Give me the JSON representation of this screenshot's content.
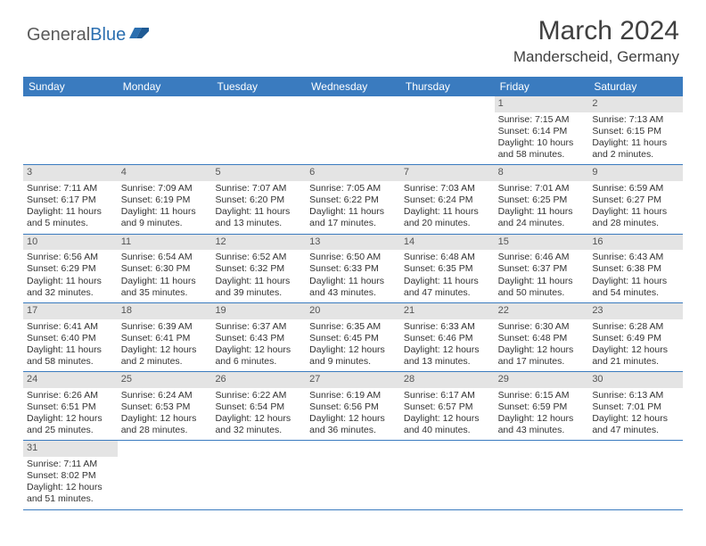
{
  "logo": {
    "part1": "General",
    "part2": "Blue"
  },
  "title": "March 2024",
  "location": "Manderscheid, Germany",
  "colors": {
    "header_bg": "#3a7bbf",
    "header_fg": "#ffffff",
    "daynum_bg": "#e4e4e4",
    "row_border": "#3a7bbf",
    "logo_gray": "#5a5a5a",
    "logo_blue": "#2b6fb0",
    "title_color": "#404040",
    "text_color": "#333333",
    "background": "#ffffff"
  },
  "fonts": {
    "title_size": 30,
    "location_size": 17,
    "dayhead_size": 12,
    "cell_size": 10.5
  },
  "day_headers": [
    "Sunday",
    "Monday",
    "Tuesday",
    "Wednesday",
    "Thursday",
    "Friday",
    "Saturday"
  ],
  "weeks": [
    [
      null,
      null,
      null,
      null,
      null,
      {
        "n": "1",
        "sunrise": "7:15 AM",
        "sunset": "6:14 PM",
        "daylight": "10 hours and 58 minutes."
      },
      {
        "n": "2",
        "sunrise": "7:13 AM",
        "sunset": "6:15 PM",
        "daylight": "11 hours and 2 minutes."
      }
    ],
    [
      {
        "n": "3",
        "sunrise": "7:11 AM",
        "sunset": "6:17 PM",
        "daylight": "11 hours and 5 minutes."
      },
      {
        "n": "4",
        "sunrise": "7:09 AM",
        "sunset": "6:19 PM",
        "daylight": "11 hours and 9 minutes."
      },
      {
        "n": "5",
        "sunrise": "7:07 AM",
        "sunset": "6:20 PM",
        "daylight": "11 hours and 13 minutes."
      },
      {
        "n": "6",
        "sunrise": "7:05 AM",
        "sunset": "6:22 PM",
        "daylight": "11 hours and 17 minutes."
      },
      {
        "n": "7",
        "sunrise": "7:03 AM",
        "sunset": "6:24 PM",
        "daylight": "11 hours and 20 minutes."
      },
      {
        "n": "8",
        "sunrise": "7:01 AM",
        "sunset": "6:25 PM",
        "daylight": "11 hours and 24 minutes."
      },
      {
        "n": "9",
        "sunrise": "6:59 AM",
        "sunset": "6:27 PM",
        "daylight": "11 hours and 28 minutes."
      }
    ],
    [
      {
        "n": "10",
        "sunrise": "6:56 AM",
        "sunset": "6:29 PM",
        "daylight": "11 hours and 32 minutes."
      },
      {
        "n": "11",
        "sunrise": "6:54 AM",
        "sunset": "6:30 PM",
        "daylight": "11 hours and 35 minutes."
      },
      {
        "n": "12",
        "sunrise": "6:52 AM",
        "sunset": "6:32 PM",
        "daylight": "11 hours and 39 minutes."
      },
      {
        "n": "13",
        "sunrise": "6:50 AM",
        "sunset": "6:33 PM",
        "daylight": "11 hours and 43 minutes."
      },
      {
        "n": "14",
        "sunrise": "6:48 AM",
        "sunset": "6:35 PM",
        "daylight": "11 hours and 47 minutes."
      },
      {
        "n": "15",
        "sunrise": "6:46 AM",
        "sunset": "6:37 PM",
        "daylight": "11 hours and 50 minutes."
      },
      {
        "n": "16",
        "sunrise": "6:43 AM",
        "sunset": "6:38 PM",
        "daylight": "11 hours and 54 minutes."
      }
    ],
    [
      {
        "n": "17",
        "sunrise": "6:41 AM",
        "sunset": "6:40 PM",
        "daylight": "11 hours and 58 minutes."
      },
      {
        "n": "18",
        "sunrise": "6:39 AM",
        "sunset": "6:41 PM",
        "daylight": "12 hours and 2 minutes."
      },
      {
        "n": "19",
        "sunrise": "6:37 AM",
        "sunset": "6:43 PM",
        "daylight": "12 hours and 6 minutes."
      },
      {
        "n": "20",
        "sunrise": "6:35 AM",
        "sunset": "6:45 PM",
        "daylight": "12 hours and 9 minutes."
      },
      {
        "n": "21",
        "sunrise": "6:33 AM",
        "sunset": "6:46 PM",
        "daylight": "12 hours and 13 minutes."
      },
      {
        "n": "22",
        "sunrise": "6:30 AM",
        "sunset": "6:48 PM",
        "daylight": "12 hours and 17 minutes."
      },
      {
        "n": "23",
        "sunrise": "6:28 AM",
        "sunset": "6:49 PM",
        "daylight": "12 hours and 21 minutes."
      }
    ],
    [
      {
        "n": "24",
        "sunrise": "6:26 AM",
        "sunset": "6:51 PM",
        "daylight": "12 hours and 25 minutes."
      },
      {
        "n": "25",
        "sunrise": "6:24 AM",
        "sunset": "6:53 PM",
        "daylight": "12 hours and 28 minutes."
      },
      {
        "n": "26",
        "sunrise": "6:22 AM",
        "sunset": "6:54 PM",
        "daylight": "12 hours and 32 minutes."
      },
      {
        "n": "27",
        "sunrise": "6:19 AM",
        "sunset": "6:56 PM",
        "daylight": "12 hours and 36 minutes."
      },
      {
        "n": "28",
        "sunrise": "6:17 AM",
        "sunset": "6:57 PM",
        "daylight": "12 hours and 40 minutes."
      },
      {
        "n": "29",
        "sunrise": "6:15 AM",
        "sunset": "6:59 PM",
        "daylight": "12 hours and 43 minutes."
      },
      {
        "n": "30",
        "sunrise": "6:13 AM",
        "sunset": "7:01 PM",
        "daylight": "12 hours and 47 minutes."
      }
    ],
    [
      {
        "n": "31",
        "sunrise": "7:11 AM",
        "sunset": "8:02 PM",
        "daylight": "12 hours and 51 minutes."
      },
      null,
      null,
      null,
      null,
      null,
      null
    ]
  ],
  "labels": {
    "sunrise": "Sunrise: ",
    "sunset": "Sunset: ",
    "daylight": "Daylight: "
  }
}
